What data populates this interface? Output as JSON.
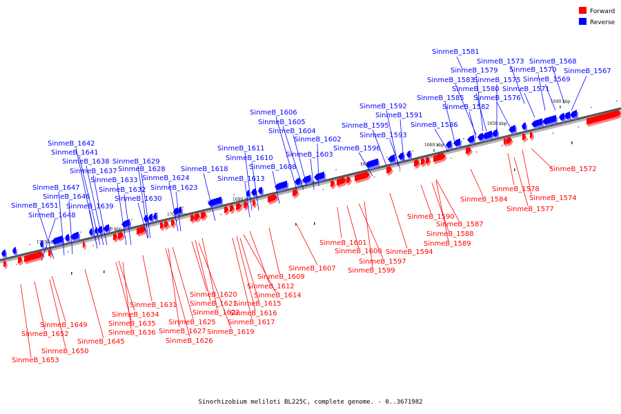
{
  "caption": "Sinorhizobium meliloti BL225C, complete genome. - 0..3671982",
  "legend": [
    {
      "label": "Forward",
      "color": "#ff0000"
    },
    {
      "label": "Reverse",
      "color": "#0000ff"
    }
  ],
  "colors": {
    "forward": "#ff0000",
    "reverse": "#0000ff",
    "axis": "#555555"
  },
  "ticks": [
    "1640 kbp",
    "1650 kbp",
    "1660 kbp",
    "1670 kbp",
    "1680 kbp",
    "1690 kbp",
    "1700 kbp",
    "1710 kbp",
    "1720 kbp"
  ],
  "reverse_labels": [
    "SinmeB_1581",
    "SinmeB_1573",
    "SinmeB_1568",
    "SinmeB_1579",
    "SinmeB_1570",
    "SinmeB_1567",
    "SinmeB_1583",
    "SinmeB_1575",
    "SinmeB_1569",
    "SinmeB_1580",
    "SinmeB_1571",
    "SinmeB_1585",
    "SinmeB_1576",
    "SinmeB_1582",
    "SinmeB_1592",
    "SinmeB_1591",
    "SinmeB_1595",
    "SinmeB_1586",
    "SinmeB_1593",
    "SinmeB_1596",
    "SinmeB_1606",
    "SinmeB_1605",
    "SinmeB_1604",
    "SinmeB_1602",
    "SinmeB_1611",
    "SinmeB_1603",
    "SinmeB_1610",
    "SinmeB_1608",
    "SinmeB_1618",
    "SinmeB_1613",
    "SinmeB_1642",
    "SinmeB_1641",
    "SinmeB_1638",
    "SinmeB_1629",
    "SinmeB_1637",
    "SinmeB_1628",
    "SinmeB_1633",
    "SinmeB_1624",
    "SinmeB_1647",
    "SinmeB_1632",
    "SinmeB_1623",
    "SinmeB_1646",
    "SinmeB_1630",
    "SinmeB_1651",
    "SinmeB_1639",
    "SinmeB_1648"
  ],
  "forward_labels": [
    "SinmeB_1572",
    "SinmeB_1578",
    "SinmeB_1574",
    "SinmeB_1584",
    "SinmeB_1577",
    "SinmeB_1590",
    "SinmeB_1587",
    "SinmeB_1588",
    "SinmeB_1589",
    "SinmeB_1601",
    "SinmeB_1600",
    "SinmeB_1594",
    "SinmeB_1597",
    "SinmeB_1599",
    "SinmeB_1607",
    "SinmeB_1609",
    "SinmeB_1612",
    "SinmeB_1614",
    "SinmeB_1620",
    "SinmeB_1615",
    "SinmeB_1621",
    "SinmeB_1631",
    "SinmeB_1622",
    "SinmeB_1616",
    "SinmeB_1634",
    "SinmeB_1625",
    "SinmeB_1617",
    "SinmeB_1635",
    "SinmeB_1627",
    "SinmeB_1619",
    "SinmeB_1636",
    "SinmeB_1626",
    "SinmeB_1649",
    "SinmeB_1645",
    "SinmeB_1652",
    "SinmeB_1650",
    "SinmeB_1653"
  ]
}
